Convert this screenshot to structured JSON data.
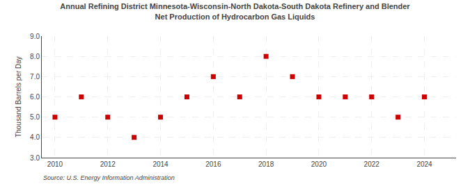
{
  "chart_data": {
    "type": "scatter",
    "title": "Annual Refining District Minnesota-Wisconsin-North Dakota-South Dakota Refinery and Blender\nNet Production of Hydrocarbon Gas Liquids",
    "ylabel": "Thousand Barrels per Day",
    "source": "Source: U.S. Energy Information Administration",
    "x": [
      2010,
      2011,
      2012,
      2013,
      2014,
      2015,
      2016,
      2017,
      2018,
      2019,
      2020,
      2021,
      2022,
      2023,
      2024
    ],
    "values": [
      5.0,
      6.0,
      5.0,
      4.0,
      5.0,
      6.0,
      7.0,
      6.0,
      8.0,
      7.0,
      6.0,
      6.0,
      6.0,
      5.0,
      6.0
    ],
    "color": "#cc0000",
    "marker": "square",
    "xlim": [
      2009.5,
      2025.2
    ],
    "xticks": [
      2010,
      2012,
      2014,
      2016,
      2018,
      2020,
      2022,
      2024
    ],
    "ylim": [
      3.0,
      9.0
    ],
    "yticks": [
      {
        "value": 3.0,
        "label": "3.0"
      },
      {
        "value": 4.0,
        "label": "4.0"
      },
      {
        "value": 5.0,
        "label": "5.0"
      },
      {
        "value": 6.0,
        "label": "6.0"
      },
      {
        "value": 7.0,
        "label": "7.0"
      },
      {
        "value": 8.0,
        "label": "8.0"
      },
      {
        "value": 9.0,
        "label": "9.0"
      }
    ],
    "grid": true
  }
}
